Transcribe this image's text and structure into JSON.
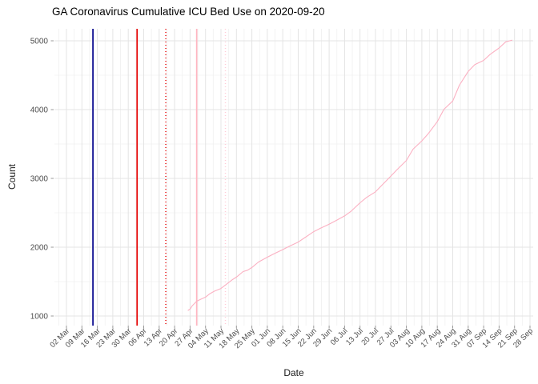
{
  "title": "GA Coronavirus Cumulative ICU Bed Use on 2020-09-20",
  "chart_data": {
    "type": "line",
    "title": "GA Coronavirus Cumulative ICU Bed Use on 2020-09-20",
    "xlabel": "Date",
    "ylabel": "Count",
    "legend": "none",
    "grid": "major-and-minor",
    "background_color": "#FFFFFF",
    "major_grid_color": "#E4E4E4",
    "minor_grid_color": "#F0F0F0",
    "axis_text_color": "#4D4D4D",
    "axis_title_color": "#1A1A1A",
    "tick_mark_color": "#999999",
    "x_ticks_start": "2020-03-02",
    "x_ticks_every_days": 7,
    "x_tick_labels": [
      "02 Mar",
      "09 Mar",
      "16 Mar",
      "23 Mar",
      "30 Mar",
      "06 Apr",
      "13 Apr",
      "20 Apr",
      "27 Apr",
      "04 May",
      "11 May",
      "18 May",
      "25 May",
      "01 Jun",
      "08 Jun",
      "15 Jun",
      "22 Jun",
      "29 Jun",
      "06 Jul",
      "13 Jul",
      "20 Jul",
      "27 Jul",
      "03 Aug",
      "10 Aug",
      "17 Aug",
      "24 Aug",
      "31 Aug",
      "07 Sep",
      "14 Sep",
      "21 Sep",
      "28 Sep"
    ],
    "y_ticks": [
      1000,
      2000,
      3000,
      4000,
      5000
    ],
    "y_minor_ticks": [
      1500,
      2500,
      3500,
      4500
    ],
    "ylim_drawn": [
      860,
      5180
    ],
    "xlim_drawn": [
      "2020-02-26",
      "2020-09-29"
    ],
    "vlines": [
      {
        "date": "2020-03-14",
        "color": "#00008B",
        "style": "solid"
      },
      {
        "date": "2020-04-03",
        "color": "#E60000",
        "style": "solid"
      },
      {
        "date": "2020-04-16",
        "color": "#E60000",
        "style": "dotted"
      },
      {
        "date": "2020-04-30",
        "color": "#FFB6C1",
        "style": "solid"
      },
      {
        "date": "2020-05-13",
        "color": "#FFCBD6",
        "style": "dotted"
      }
    ],
    "series": [
      {
        "name": "cumulative-icu-bed-use",
        "color": "#FBB0C2",
        "points": [
          [
            "2020-04-26",
            1080
          ],
          [
            "2020-04-27",
            1100
          ],
          [
            "2020-04-28",
            1150
          ],
          [
            "2020-04-30",
            1215
          ],
          [
            "2020-05-02",
            1245
          ],
          [
            "2020-05-04",
            1275
          ],
          [
            "2020-05-06",
            1325
          ],
          [
            "2020-05-08",
            1360
          ],
          [
            "2020-05-11",
            1400
          ],
          [
            "2020-05-13",
            1450
          ],
          [
            "2020-05-16",
            1525
          ],
          [
            "2020-05-18",
            1565
          ],
          [
            "2020-05-21",
            1645
          ],
          [
            "2020-05-23",
            1665
          ],
          [
            "2020-05-25",
            1705
          ],
          [
            "2020-05-28",
            1785
          ],
          [
            "2020-06-01",
            1855
          ],
          [
            "2020-06-04",
            1905
          ],
          [
            "2020-06-08",
            1965
          ],
          [
            "2020-06-11",
            2015
          ],
          [
            "2020-06-15",
            2075
          ],
          [
            "2020-06-18",
            2140
          ],
          [
            "2020-06-22",
            2225
          ],
          [
            "2020-06-25",
            2275
          ],
          [
            "2020-06-29",
            2335
          ],
          [
            "2020-07-02",
            2385
          ],
          [
            "2020-07-06",
            2455
          ],
          [
            "2020-07-09",
            2525
          ],
          [
            "2020-07-13",
            2645
          ],
          [
            "2020-07-16",
            2725
          ],
          [
            "2020-07-20",
            2805
          ],
          [
            "2020-07-23",
            2905
          ],
          [
            "2020-07-27",
            3035
          ],
          [
            "2020-07-30",
            3135
          ],
          [
            "2020-08-03",
            3260
          ],
          [
            "2020-08-06",
            3425
          ],
          [
            "2020-08-10",
            3545
          ],
          [
            "2020-08-13",
            3655
          ],
          [
            "2020-08-17",
            3825
          ],
          [
            "2020-08-20",
            4005
          ],
          [
            "2020-08-24",
            4125
          ],
          [
            "2020-08-27",
            4355
          ],
          [
            "2020-08-31",
            4555
          ],
          [
            "2020-09-03",
            4655
          ],
          [
            "2020-09-07",
            4715
          ],
          [
            "2020-09-10",
            4805
          ],
          [
            "2020-09-14",
            4895
          ],
          [
            "2020-09-17",
            4985
          ],
          [
            "2020-09-20",
            5010
          ]
        ]
      }
    ]
  }
}
